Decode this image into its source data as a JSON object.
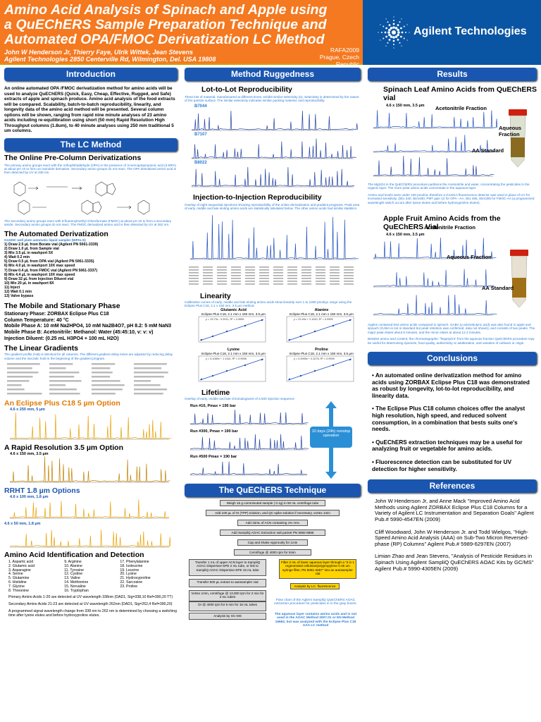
{
  "header": {
    "title": "Amino Acid Analysis of Spinach and Apple using a QuEChERS Sample Preparation Technique and Automated OPA/FMOC Derivatization LC Method",
    "authors": "John W Henderson Jr,  Thierry Faye,  Ulrik Wittek,  Jean Stevens",
    "address": "Agilent Technologies 2850 Centerville Rd, Wilmington, Del. USA 19808",
    "code": "RAFA2009",
    "location": "Prague, Czech Republic",
    "logo_text": "Agilent Technologies",
    "accent": "#f47920",
    "bar_color": "#1a56b0"
  },
  "col1": {
    "intro_title": "Introduction",
    "intro_text": "An online automated OPA /FMOC derivatization method for amino acids will be used to analyze QuEChERS (Quick, Easy, Cheap, Effective, Rugged, and Safe) extracts of apple and spinach produce.  Amino acid analysis of the food extracts will be compared.   Scalability, batch-to-batch reproducibility, linearity, and longevity data of the amino acid method will be presented.  Several column options will be shown, ranging from rapid nine minute analyses of 23 amino acids including re-equilibration using short (50 mm) Rapid Resolution High Throughput columns (1.8um), to 40 minute analyses using 250 mm traditional 5 um columns.",
    "lc_title": "The LC Method",
    "online_title": "The Online Pre-Column Derivatizations",
    "online_text1": "The primary amino groups react with the orthophthaldehyde (OPA) in the presence of 3-mercaptopropionic acid (3-MPA) at about pH 10 to form an isoindole derivative. Secondary amino groups do not react. The OPA derivatized amino acid is then detected by UV at 338 nm.",
    "online_text2": "The secondary amino groups react with 9-fluorenylmethyl chloroformate (FMOC) at about pH 10 to form a secondary amide. Secondary amino groups do not react. The FMOC derivatized amino acid is then detected by UV at 262 nm.",
    "auto_title": "The Automated Derivatization",
    "auto_sub": "G1329C well plate automatic liquid sampler (WPALS):",
    "auto_steps": [
      "1)  Draw 2.5 µL from Borate vial (Agilent PN 5061-3339)",
      "2)  Draw 1.0 µL from Sample vial",
      "3)  Mix 3.5 µL in washport 5X",
      "4)  Wait 0.2 min",
      "5)  Draw 0.5 µL from OPA vial (Agilent PN 5061-3335)",
      "6)  Mix 4.0 µL in washport 10X max speed",
      "7)  Draw 0.4 µL from FMOC vial (Agilent PN 5061-3337)",
      "8)  Mix 4.4 µL in washport 10X max speed",
      "9)  Draw 32 µL from Injection Diluent vial",
      "10) Mix 20 µL in washport 8X",
      "11) Inject",
      "12) Wait 0.1 min",
      "13) Valve bypass"
    ],
    "mobile_title": "The  Mobile and Stationary Phase",
    "mobile_lines": [
      "Stationary Phase:  ZORBAX Eclipse Plus C18",
      "Column Temperature:  40 °C",
      "Mobile Phase A:  10 mM Na2HPO4, 10 mM Na2B4O7, pH 8.2: 5 mM NaN3",
      "Mobile Phase B:  Acetonitrile: Methanol: Water  (45:45:10, v: v: v)",
      "Injection Diluent: (0.25 mL H3PO4 + 100 mL H2O)"
    ],
    "grad_title": "The Linear Gradients",
    "grad_text": "The gradient profile (%B) is identical for all columns. The different gradient delay times are adjusted by reducing delay volume and the isocratic hold in the beginning of the gradient program.",
    "eclipse_title": "An Eclipse Plus C18 5 µm Option",
    "eclipse_col": "4.6 x 250 mm, 5 µm",
    "rr_title": "A Rapid Resolution 3.5 µm Option",
    "rr_col": "4.6 x 150 mm, 3.5 µm",
    "rrht_title": "RRHT 1.8 µm Options",
    "rrht_col1": "4.6 x 100 mm, 1.8 µm",
    "rrht_col2": "4.6 x 50 mm, 1.8 µm",
    "aa_title": "Amino Acid Identification and Detection",
    "aa_list": [
      "1. Aspartic acid",
      "2. Glutamic acid",
      "3. Asparagine",
      "4. Serine",
      "5. Glutamine",
      "6. Histidine",
      "7. Glycine",
      "8. Threonine",
      "9. Arginine",
      "10. Alanine",
      "11. Tyrosine",
      "12. Cystine",
      "13. Valine",
      "14. Methionine",
      "15. Norvaline",
      "16. Tryptophan",
      "17. Phenylalanine",
      "18. Isoleucine",
      "19. Leucine",
      "20. Lysine",
      "21. Hydroxyproline",
      "22. Sarcosine",
      "23. Proline"
    ],
    "aa_note1": "Primary Amino Acids 1-20 are detected at UV wavelength 338nm (DAD1, Sig=338,10 Ref=390,20 TT)",
    "aa_note2": "Secondary Amino Acids 21-23 are detected at UV wavelength 262nm (DAD1, Sig=262,4 Ref=390,20)",
    "aa_note3": "A programmed signal wavelength change from 338 nm to 262 nm is determined by choosing a switching time after lysine elutes and before hydroxyproline elutes."
  },
  "col2": {
    "rug_title": "Method Ruggedness",
    "lot_title": "Lot-to-Lot Reproducibility",
    "lot_text": "Three lots of material, manufactured at different times, exhibit similar selectivity (α). Selectivity is determined by the nature of the particle surface. The similar selectivity indicates similar packing material, and reproducibility.",
    "lots": [
      "B7044",
      "B7107",
      "B8022"
    ],
    "inj_title": "Injection-to-Injection Reproducibility",
    "inj_text": "Overlay of eight sequential injections showing reproducibility of the online derivatization and gradient programs. Peak area of early, middle and late eluting amino acids are statistically tabulated below. The other amino acids had similar statistics.",
    "lin_title": "Linearity",
    "lin_text": "Calibration curves of early, middle and late eluting amino acids show linearity over 1 to 1000 pmol/µL range using the Eclipse Plus C18, 2.1 x 150 mm, 3.5 µm method.",
    "lin_charts": [
      {
        "name": "Glutamic Acid",
        "cond": "Eclipse Plus C18, 2.1 mm x 150 mm, 3.5 µm",
        "eq": "y = 19.73x - 0.2911, R² = 0.9999"
      },
      {
        "name": "Alanine",
        "cond": "Eclipse Plus C18, 2.1 mm x 150 mm, 3.5 µm",
        "eq": "y = 22.49x + 2.1043, R² = 0.9999"
      },
      {
        "name": "Lysine",
        "cond": "Eclipse Plus C18, 2.1 mm x 150 mm, 3.5 µm",
        "eq": "y = 5.1089x + 1.1341, R² = 0.9998"
      },
      {
        "name": "Proline",
        "cond": "Eclipse Plus C18, 2.1 mm x 150 mm, 3.5 µm",
        "eq": "y = 0.3995x + 0.3278, R² = 0.9999"
      }
    ],
    "life_title": "Lifetime",
    "life_text": "Overlay of early, middle  and late  chromatograms of a 500 injection sequence",
    "life_runs": [
      "Run #10, Pmax = 195 bar",
      "Run #300, Pmax = 190 bar",
      "Run #500 Pmax = 190 bar"
    ],
    "life_arrow": "10 days (24h) nonstop operation",
    "quech_title": "The QuEChERS Technique",
    "quech_steps": [
      "Weigh 15 g comminuted sample (  0.1g) in 50 mL centrifuge tube",
      "Add 100 µL of IS (TPP) solution, and QC spike solution if  necessary, vortex 1min",
      "Add 15mL of ACN containing 1% HAc",
      "Add SampliQ AOAC Extraction salt packet PN 5982-5855",
      "Cap and shake vigorously for 1min",
      "Centrifuge @ 4000 rpm for 5min"
    ],
    "quech_left": [
      "Transfer 1 mL of upper ACN layer to SampliQ AOAC Dispersive-SPE 2 mL tube, or link to SampliQ AOAC Dispersive-SPE 15 mL tube",
      "Transfer 500 µL extract to autosampler vial",
      "Vortex 1min, centrifuge @ 13,000 rpm for 2 min for 2 mL tubes",
      "Or @ 4000 rpm for 5 min for 15 mL tubes",
      "Analysis by GC-MS"
    ],
    "quech_right": [
      "Filter 2 mL of lower aqueous layer through a \"3 in 1 regenerated cellulose/polypropylene 0.45 um syringe filter, PN 5061-3367\" into an autosampler vial",
      "Analysis by LC- fluorescence"
    ],
    "quech_note1": "Flow chart of the Agilent SampliQ QuEChERS AOAC extraction procedure for pesticides in in the gray boxes.",
    "quech_note2": "The aqueous layer contains amino acids and is not used in the AOAC Method 2007.01  or EN Method 15662, but was analyzed with the Eclipse Plus C18  AAA LC method"
  },
  "col3": {
    "res_title": "Results",
    "spin_title": "Spinach Leaf Amino Acids from QuEChERS vial",
    "spin_col": "4.6 x 150 mm, 3.5 µm",
    "labels": [
      "Acetonitrile Fraction",
      "Aqueous Fraction",
      "AA Standard"
    ],
    "spin_text1": "The MgSO4 in the QuEChERS procedure partitions the Acetonitrile and water, concentrating the pesticides in the  organic layer.  The  more polar amino acids concentrate in the aqueous layer.",
    "spin_text2": "Amino acid levels were under 100 pmol/uL therefore a G1321A fluorescence detector was used in place of UV for increased sensitivity.  (λEx 340, λEm450, PMT gain 12 for  OPA –AA, λEx 266, λEm305 for FMOC-AA  (a programmed wavelength switch occurs after lysine elutes and before hydroxyproline elutes).",
    "apple_title": "Apple Fruit Amino Acids from the QuEChERS Vial",
    "apple_col": "4.6 x 150 mm, 3.5 µm",
    "apple_text1": "Apples contained less amino acids compared to spinach.  GABA (γ-aminobutyric acid)  was also found in apple and spinach (GABA is not in standard but peak retention was confirmed, data not shown), and consists of two peaks.  The major peak elutes about 9 minutes, and the minor elutes at about 12.2 minutes.",
    "apple_text2": "Besides amino acid content, the  chromatographic \"fingerprint\" from the aqueous fraction QuEChERS procedure may be useful for determining ripeness, food quality, authenticity or adulteration, and variation of cultivars or origin.",
    "concl_title": "Conclusions",
    "concl": [
      "• An automated online derivatization method for amino acids using ZORBAX Eclipse Plus C18 was demonstrated as robust by longevity, lot-to-lot reproducibility, and linearity data.",
      "• The Eclipse Plus C18 column choices offer the analyst high resolution, high speed, and reduced solvent consumption, in a combination that bests suits one's needs.",
      "• QuEChERS  extraction techniques may be a useful for analyzing fruit or vegetable for amino acids.",
      "• Fluorescence detection can be substituted for UV detection for higher sensitivity."
    ],
    "ref_title": "References",
    "refs": [
      "John W Henderson Jr,  and Anne Mack \"Improved Amino Acid Methods using Agilent ZORBAX Eclipse Plus C18 Columns for a Variety of Agilent LC Instrumentation and Separation Goals\" Agilent Pub.# 5990-4547EN (2009)",
      "Cliff Woodward, John W Henderson Jr. and Todd Wielgos, \"High-Speed Amino Acid Analysis (AAA) on Sub-Two Micron Reversed-phase (RP) Columns\" Agilent Pub.# 5989-6297EN (2007)",
      "Limian Zhao and Jean Stevens, \"Analysis of Pesticide Residues in Spinach Using Agilent SampliQ QuEChERS AOAC Kits by GC/MS\" Agilent Pub.# 5990-4305EN (2009)"
    ]
  }
}
